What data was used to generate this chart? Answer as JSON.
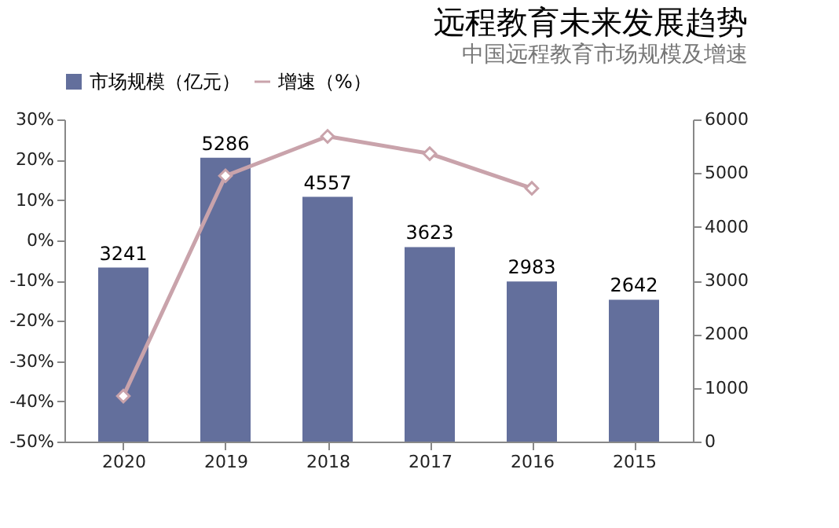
{
  "chart_data": {
    "type": "bar",
    "title": "远程教育未来发展趋势",
    "subtitle": "中国远程教育市场规模及增速",
    "categories": [
      "2020",
      "2019",
      "2018",
      "2017",
      "2016",
      "2015"
    ],
    "series": [
      {
        "name": "市场规模（亿元）",
        "color": "#636f9c",
        "values": [
          3241,
          5286,
          4557,
          3623,
          2983,
          2642
        ],
        "value_labels": [
          "3241",
          "5286",
          "4557",
          "3623",
          "2983",
          "2642"
        ]
      },
      {
        "name": "增速（%）",
        "type": "line",
        "axis": "y2",
        "color": "#c9a3ab",
        "marker": "diamond",
        "values": [
          -38.7,
          16.0,
          25.8,
          21.5,
          12.9,
          null
        ]
      }
    ],
    "ylim": [
      0,
      6000
    ],
    "yticks": [
      0,
      1000,
      2000,
      3000,
      4000,
      5000,
      6000
    ],
    "y2lim": [
      -50,
      30
    ],
    "y2ticks": [
      {
        "value": -50,
        "label": "-50%"
      },
      {
        "value": -40,
        "label": "-40%"
      },
      {
        "value": -30,
        "label": "-30%"
      },
      {
        "value": -20,
        "label": "-20%"
      },
      {
        "value": -10,
        "label": "-10%"
      },
      {
        "value": 0,
        "label": "0%"
      },
      {
        "value": 10,
        "label": "10%"
      },
      {
        "value": 20,
        "label": "20%"
      },
      {
        "value": 30,
        "label": "30%"
      }
    ],
    "legend": "top",
    "grid": false
  }
}
